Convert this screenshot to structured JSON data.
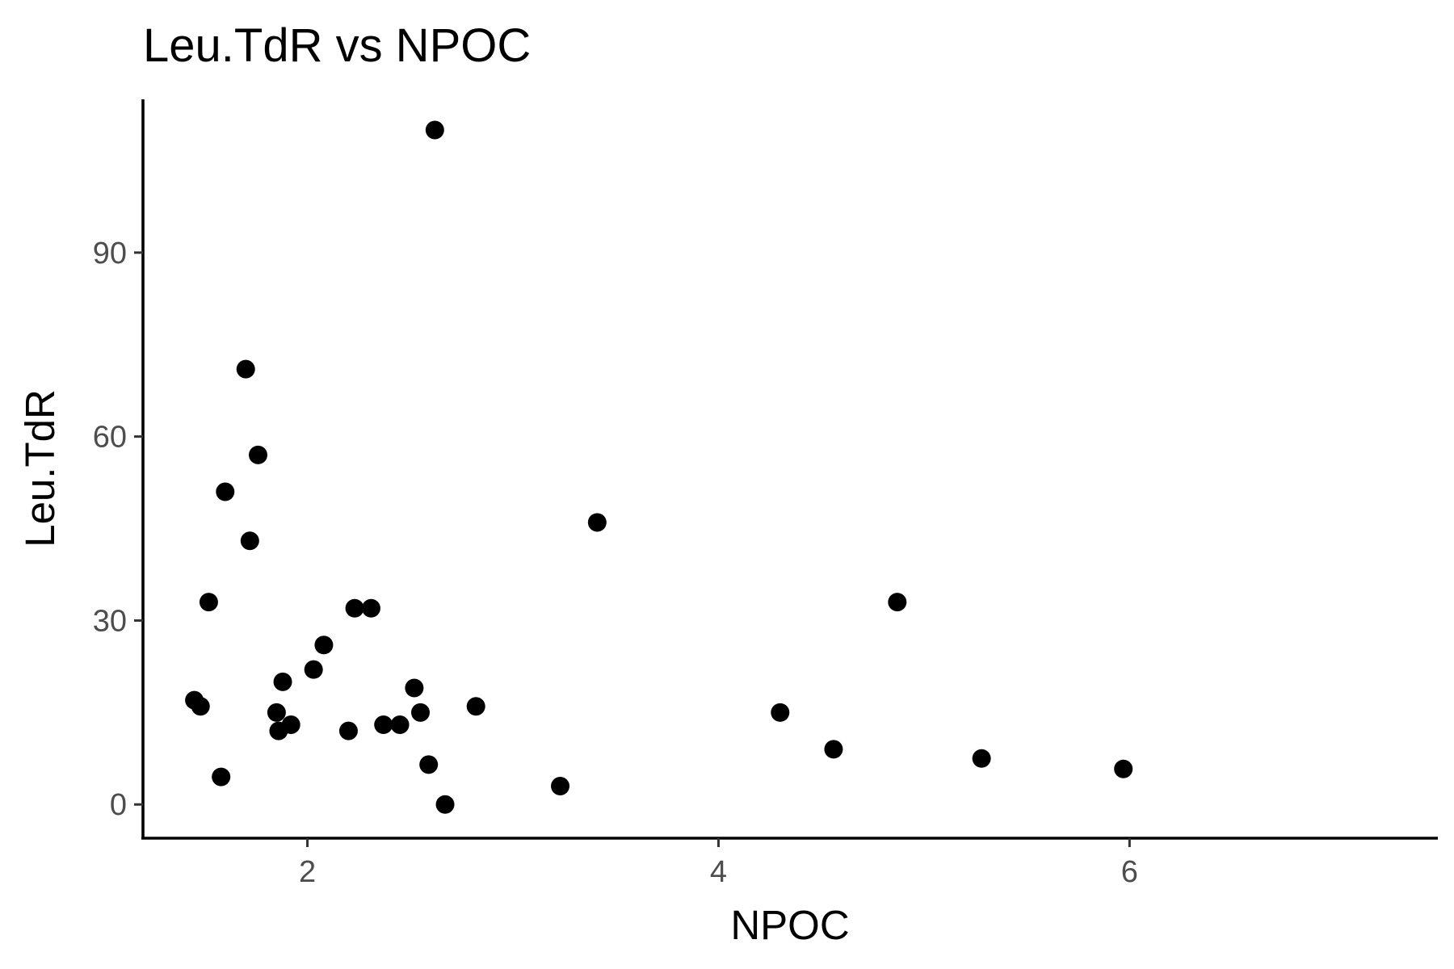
{
  "chart_data": {
    "type": "scatter",
    "title": "Leu.TdR vs NPOC",
    "xlabel": "NPOC",
    "ylabel": "Leu.TdR",
    "xlim": [
      1.2,
      7.5
    ],
    "ylim": [
      -5.5,
      115
    ],
    "x_ticks": [
      2,
      4,
      6
    ],
    "y_ticks": [
      0,
      30,
      60,
      90
    ],
    "x_tick_labels": [
      "2",
      "4",
      "6"
    ],
    "y_tick_labels": [
      "0",
      "30",
      "60",
      "90"
    ],
    "grid": false,
    "point_color": "#000000",
    "points": [
      {
        "x": 1.45,
        "y": 17
      },
      {
        "x": 1.48,
        "y": 16
      },
      {
        "x": 1.52,
        "y": 33
      },
      {
        "x": 1.58,
        "y": 4.5
      },
      {
        "x": 1.6,
        "y": 51
      },
      {
        "x": 1.7,
        "y": 71
      },
      {
        "x": 1.72,
        "y": 43
      },
      {
        "x": 1.76,
        "y": 57
      },
      {
        "x": 1.85,
        "y": 15
      },
      {
        "x": 1.86,
        "y": 12
      },
      {
        "x": 1.88,
        "y": 20
      },
      {
        "x": 1.92,
        "y": 13
      },
      {
        "x": 2.03,
        "y": 22
      },
      {
        "x": 2.08,
        "y": 26
      },
      {
        "x": 2.2,
        "y": 12
      },
      {
        "x": 2.23,
        "y": 32
      },
      {
        "x": 2.31,
        "y": 32
      },
      {
        "x": 2.37,
        "y": 13
      },
      {
        "x": 2.45,
        "y": 13
      },
      {
        "x": 2.52,
        "y": 19
      },
      {
        "x": 2.55,
        "y": 15
      },
      {
        "x": 2.59,
        "y": 6.5
      },
      {
        "x": 2.62,
        "y": 110
      },
      {
        "x": 2.67,
        "y": 0
      },
      {
        "x": 2.82,
        "y": 16
      },
      {
        "x": 3.23,
        "y": 3
      },
      {
        "x": 3.41,
        "y": 46
      },
      {
        "x": 4.3,
        "y": 15
      },
      {
        "x": 4.56,
        "y": 9
      },
      {
        "x": 4.87,
        "y": 33
      },
      {
        "x": 5.28,
        "y": 7.5
      },
      {
        "x": 5.97,
        "y": 5.8
      }
    ]
  }
}
